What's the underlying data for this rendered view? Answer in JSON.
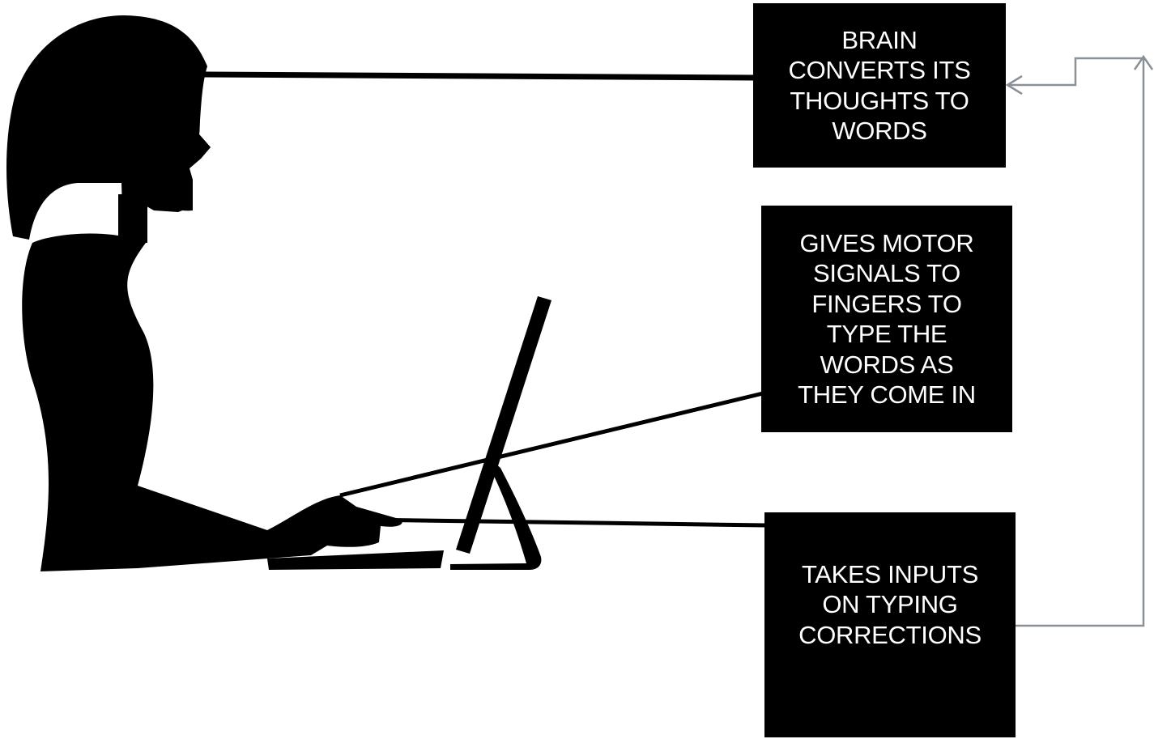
{
  "diagram": {
    "boxes": [
      {
        "id": "brain",
        "text": "BRAIN\nCONVERTS ITS\nTHOUGHTS TO\nWORDS"
      },
      {
        "id": "motor",
        "text": "GIVES MOTOR\nSIGNALS TO\nFINGERS TO\nTYPE THE\nWORDS AS\nTHEY COME IN"
      },
      {
        "id": "inputs",
        "text": "TAKES INPUTS\nON TYPING\nCORRECTIONS"
      }
    ],
    "connectors": [
      {
        "from": "head",
        "to": "brain"
      },
      {
        "from": "hand",
        "to": "motor"
      },
      {
        "from": "keyboard",
        "to": "inputs"
      },
      {
        "from": "inputs",
        "to": "brain",
        "arrow": true
      }
    ],
    "colors": {
      "silhouette": "#000000",
      "box": "#000000",
      "box_text": "#ffffff",
      "feedback_arrow": "#8a9098",
      "background": "#ffffff"
    },
    "icons": [
      "woman-silhouette",
      "computer-monitor",
      "keyboard"
    ]
  }
}
